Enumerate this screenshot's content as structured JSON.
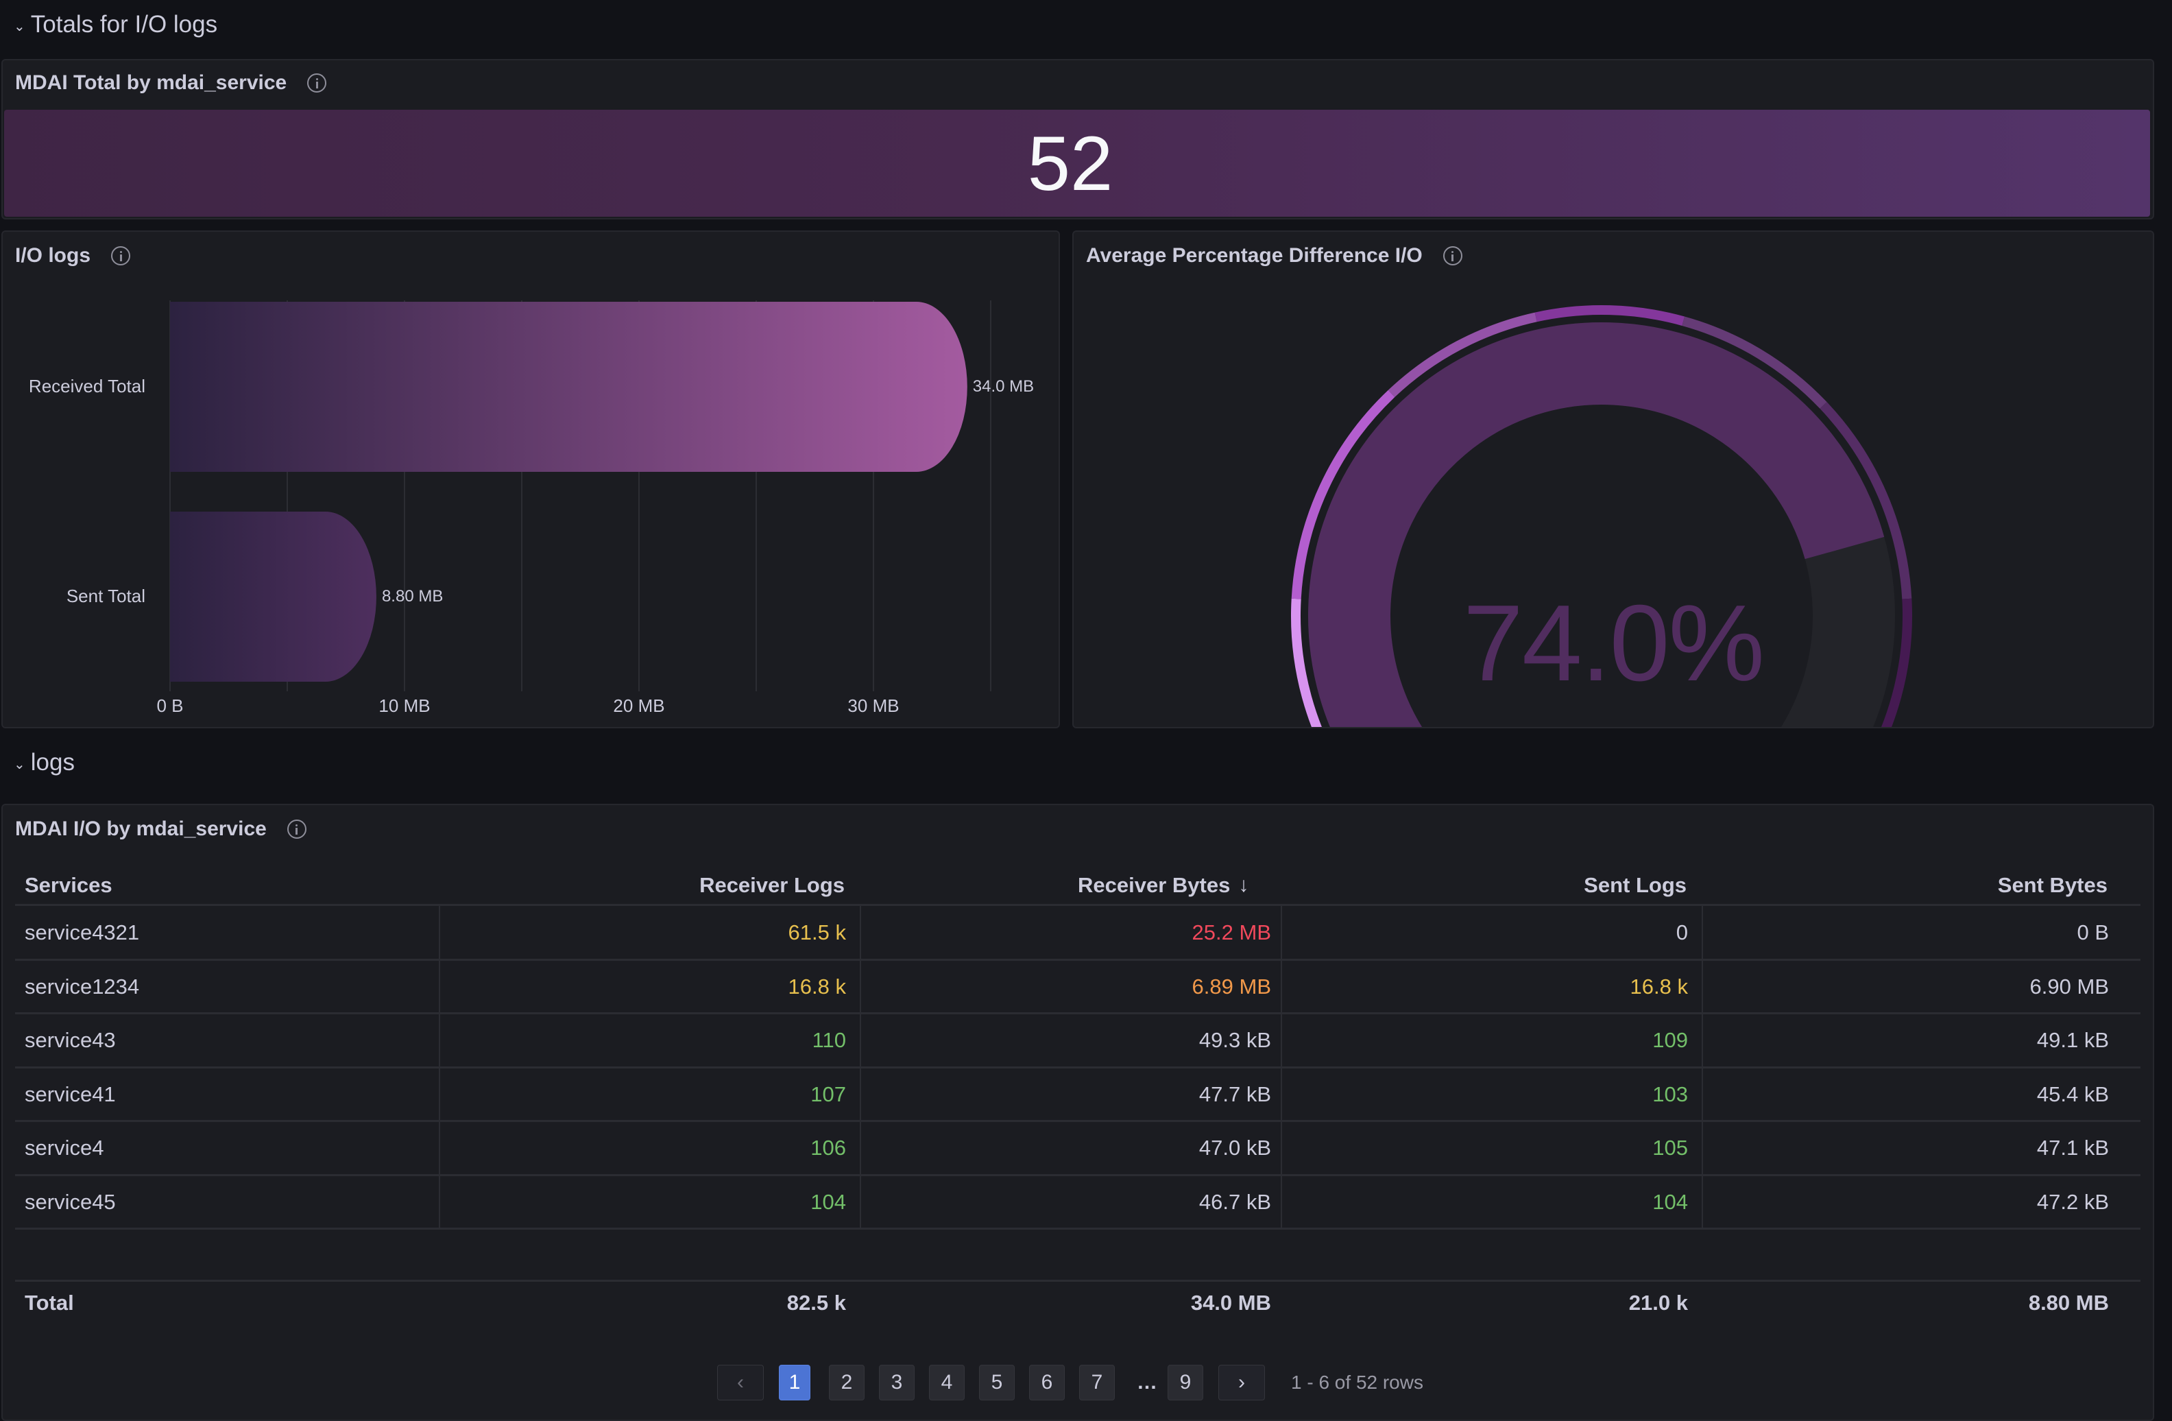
{
  "sections": [
    {
      "title": "Totals for I/O logs",
      "collapse_icon": "chevron-down-icon"
    },
    {
      "title": "logs",
      "collapse_icon": "chevron-down-icon"
    }
  ],
  "stat_panel": {
    "title": "MDAI Total by mdai_service",
    "info_icon": "info-icon",
    "value": "52",
    "colors": {
      "fill_start": "#3f2545",
      "fill_end": "#54346a",
      "text": "#f7f8fa"
    }
  },
  "io_panel": {
    "title": "I/O logs",
    "info_icon": "info-icon"
  },
  "gauge_panel": {
    "title": "Average Percentage Difference I/O",
    "info_icon": "info-icon",
    "value_text": "74.0%",
    "value": 74.0,
    "min": 0,
    "max": 100,
    "colors": {
      "fill": "#512d5f",
      "track": "#232429",
      "text": "#512d5f"
    },
    "threshold_segments": [
      {
        "from": 0,
        "to": 10,
        "color": "#e8c8f2"
      },
      {
        "from": 10,
        "to": 22,
        "color": "#d894f0"
      },
      {
        "from": 22,
        "to": 36,
        "color": "#b45ecf"
      },
      {
        "from": 36,
        "to": 46,
        "color": "#9452a8"
      },
      {
        "from": 46,
        "to": 55,
        "color": "#84379c"
      },
      {
        "from": 55,
        "to": 65,
        "color": "#653b76"
      },
      {
        "from": 65,
        "to": 78,
        "color": "#552d65"
      },
      {
        "from": 78,
        "to": 90,
        "color": "#451a52"
      },
      {
        "from": 90,
        "to": 100,
        "color": "#2f0d37"
      }
    ]
  },
  "chart_data": {
    "type": "bar",
    "orientation": "horizontal",
    "title": "I/O logs",
    "categories": [
      "Received Total",
      "Sent Total"
    ],
    "values": [
      34.0,
      8.8
    ],
    "value_labels": [
      "34.0 MB",
      "8.80 MB"
    ],
    "unit": "MB",
    "xlim": [
      0,
      35
    ],
    "xticks": [
      0,
      10,
      20,
      30
    ],
    "xtick_labels": [
      "0 B",
      "10 MB",
      "20 MB",
      "30 MB"
    ],
    "gridlines_at": [
      0,
      5,
      10,
      15,
      20,
      25,
      30,
      35
    ],
    "grid": true,
    "legend": "none",
    "colors": {
      "gradient_start": "#2c2240",
      "gradient_end_received": "#a45ba0",
      "gradient_end_sent": "#4e2f5e"
    }
  },
  "table_panel": {
    "title": "MDAI I/O by mdai_service",
    "info_icon": "info-icon",
    "columns": [
      {
        "label": "Services",
        "align": "left"
      },
      {
        "label": "Receiver Logs",
        "align": "right"
      },
      {
        "label": "Receiver Bytes",
        "align": "right",
        "sort_icon": "arrow-down-icon",
        "sorted": "desc"
      },
      {
        "label": "Sent Logs",
        "align": "right"
      },
      {
        "label": "Sent Bytes",
        "align": "right"
      }
    ],
    "rows": [
      {
        "cells": [
          "service4321",
          "61.5 k",
          "25.2 MB",
          "0",
          "0 B"
        ],
        "colors": [
          "#ccccdc",
          "#e8c04e",
          "#f2495c",
          "#ccccdc",
          "#ccccdc"
        ]
      },
      {
        "cells": [
          "service1234",
          "16.8 k",
          "6.89 MB",
          "16.8 k",
          "6.90 MB"
        ],
        "colors": [
          "#ccccdc",
          "#e8c04e",
          "#f2994a",
          "#e8c04e",
          "#ccccdc"
        ]
      },
      {
        "cells": [
          "service43",
          "110",
          "49.3 kB",
          "109",
          "49.1 kB"
        ],
        "colors": [
          "#ccccdc",
          "#73bf69",
          "#ccccdc",
          "#73bf69",
          "#ccccdc"
        ]
      },
      {
        "cells": [
          "service41",
          "107",
          "47.7 kB",
          "103",
          "45.4 kB"
        ],
        "colors": [
          "#ccccdc",
          "#73bf69",
          "#ccccdc",
          "#73bf69",
          "#ccccdc"
        ]
      },
      {
        "cells": [
          "service4",
          "106",
          "47.0 kB",
          "105",
          "47.1 kB"
        ],
        "colors": [
          "#ccccdc",
          "#73bf69",
          "#ccccdc",
          "#73bf69",
          "#ccccdc"
        ]
      },
      {
        "cells": [
          "service45",
          "104",
          "46.7 kB",
          "104",
          "47.2 kB"
        ],
        "colors": [
          "#ccccdc",
          "#73bf69",
          "#ccccdc",
          "#73bf69",
          "#ccccdc"
        ]
      }
    ],
    "footer": [
      "Total",
      "82.5 k",
      "34.0 MB",
      "21.0 k",
      "8.80 MB"
    ],
    "pagination": {
      "prev_icon": "chevron-left-icon",
      "next_icon": "chevron-right-icon",
      "pages": [
        "1",
        "2",
        "3",
        "4",
        "5",
        "6",
        "7",
        "…",
        "9"
      ],
      "current": "1",
      "summary": "1 - 6 of 52 rows"
    }
  }
}
